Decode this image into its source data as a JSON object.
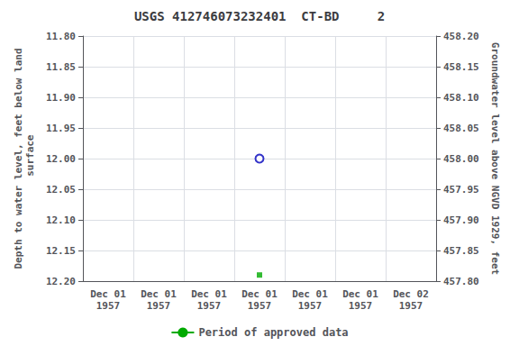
{
  "chart_data": {
    "type": "scatter",
    "title": "USGS 412746073232401  CT-BD     2",
    "ylabel": "Depth to water level, feet below land\n surface",
    "y2label": "Groundwater level above NGVD 1929, feet",
    "categories": [
      "Dec 01\n1957",
      "Dec 01\n1957",
      "Dec 01\n1957",
      "Dec 01\n1957",
      "Dec 01\n1957",
      "Dec 01\n1957",
      "Dec 02\n1957"
    ],
    "series": [
      {
        "type": "scatter",
        "marker": "hollow_circle",
        "color": "#0000bb",
        "values": [
          null,
          null,
          null,
          12.0,
          null,
          null,
          null
        ]
      },
      {
        "type": "scatter",
        "marker": "square",
        "color": "#00aa00",
        "values": [
          null,
          null,
          null,
          12.19,
          null,
          null,
          null
        ]
      },
      {
        "type": "line",
        "name": "Period of approved data",
        "color": "#00aa00",
        "values": [
          null,
          null,
          null,
          null,
          null,
          null,
          null
        ]
      }
    ],
    "ylim": [
      12.2,
      11.8
    ],
    "yticks": [
      {
        "value": 11.8,
        "label": "11.80"
      },
      {
        "value": 11.85,
        "label": "11.85"
      },
      {
        "value": 11.9,
        "label": "11.90"
      },
      {
        "value": 11.95,
        "label": "11.95"
      },
      {
        "value": 12.0,
        "label": "12.00"
      },
      {
        "value": 12.05,
        "label": "12.05"
      },
      {
        "value": 12.1,
        "label": "12.10"
      },
      {
        "value": 12.15,
        "label": "12.15"
      },
      {
        "value": 12.2,
        "label": "12.20"
      }
    ],
    "y2lim": [
      457.8,
      458.2
    ],
    "y2ticks": [
      {
        "value": 457.8,
        "label": "457.80"
      },
      {
        "value": 457.85,
        "label": "457.85"
      },
      {
        "value": 457.9,
        "label": "457.90"
      },
      {
        "value": 457.95,
        "label": "457.95"
      },
      {
        "value": 458.0,
        "label": "458.00"
      },
      {
        "value": 458.05,
        "label": "458.05"
      },
      {
        "value": 458.1,
        "label": "458.10"
      },
      {
        "value": 458.15,
        "label": "458.15"
      },
      {
        "value": 458.2,
        "label": "458.20"
      }
    ],
    "grid": true,
    "legend": "bottom"
  }
}
